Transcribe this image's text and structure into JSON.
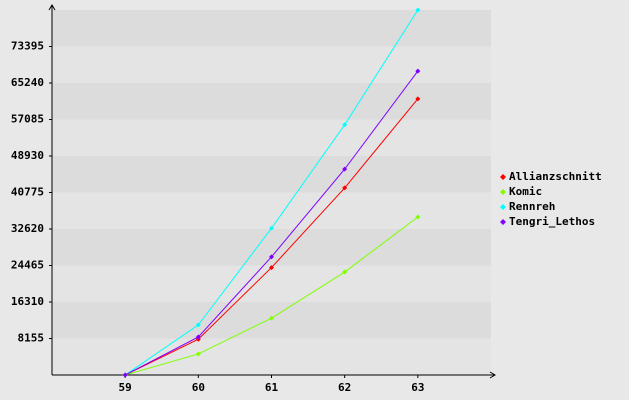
{
  "chart_data": {
    "type": "line",
    "x": [
      59,
      60,
      61,
      62,
      63
    ],
    "xlim": [
      58,
      64
    ],
    "xticks": [
      59,
      60,
      61,
      62,
      63
    ],
    "ylim": [
      0,
      81550
    ],
    "yticks": [
      8155,
      16310,
      24465,
      32620,
      40775,
      48930,
      57085,
      65240,
      73395
    ],
    "grid": true,
    "legend": "right",
    "series": [
      {
        "name": "Allianzschnitt",
        "color": "#ff0000",
        "values": [
          0,
          8000,
          24000,
          41800,
          61700
        ]
      },
      {
        "name": "Komic",
        "color": "#80ff00",
        "values": [
          0,
          4700,
          12700,
          23000,
          35300
        ]
      },
      {
        "name": "Rennreh",
        "color": "#00ffff",
        "values": [
          0,
          11200,
          32800,
          55900,
          81550
        ]
      },
      {
        "name": "Tengri_Lethos",
        "color": "#8000ff",
        "values": [
          0,
          8500,
          26400,
          46000,
          67900
        ]
      }
    ]
  }
}
